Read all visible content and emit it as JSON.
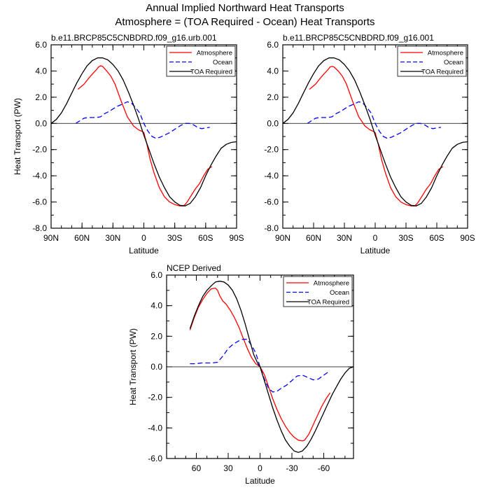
{
  "page": {
    "title_line1": "Annual Implied Northward Heat Transports",
    "title_line2": "Atmosphere = (TOA Required - Ocean) Heat Transports"
  },
  "colors": {
    "atmosphere": "#ff0000",
    "ocean": "#0000ff",
    "toa": "#000000"
  },
  "chart_data": [
    {
      "type": "line",
      "title": "b.e11.BRCP85C5CNBDRD.f09_g16.urb.001",
      "xlabel": "Latitude",
      "ylabel": "Heat Transport (PW)",
      "xlim": [
        90,
        -90
      ],
      "ylim": [
        -8,
        6
      ],
      "x_ticks": [
        90,
        60,
        30,
        0,
        -30,
        -60,
        -90
      ],
      "x_tick_labels": [
        "90N",
        "60N",
        "30N",
        "0",
        "30S",
        "60S",
        "90S"
      ],
      "y_ticks": [
        -8,
        -6,
        -4,
        -2,
        0,
        2,
        4,
        6
      ],
      "y_tick_labels": [
        "-8.0",
        "-6.0",
        "-4.0",
        "-2.0",
        "0.0",
        "2.0",
        "4.0",
        "6.0"
      ],
      "zero_line": true,
      "legend_position": "top-right",
      "series": [
        {
          "name": "Atmosphere",
          "style": "solid",
          "color_key": "atmosphere",
          "x": [
            64,
            58,
            53,
            49,
            46,
            44,
            42,
            40,
            36,
            32,
            28,
            22,
            16,
            10,
            5,
            2,
            0,
            -3,
            -6,
            -10,
            -15,
            -20,
            -25,
            -30,
            -35,
            -38,
            -40,
            -42,
            -46,
            -50,
            -54,
            -58,
            -62,
            -66
          ],
          "y": [
            2.6,
            3.0,
            3.5,
            3.85,
            4.1,
            4.3,
            4.4,
            4.35,
            4.0,
            3.6,
            3.0,
            1.7,
            0.5,
            -0.2,
            -0.5,
            -0.6,
            -0.7,
            -1.6,
            -2.7,
            -3.8,
            -4.9,
            -5.6,
            -6.0,
            -6.2,
            -6.3,
            -6.3,
            -6.2,
            -6.0,
            -5.5,
            -5.0,
            -4.6,
            -4.0,
            -3.5,
            -3.3
          ]
        },
        {
          "name": "Ocean",
          "style": "dashed",
          "color_key": "ocean",
          "x": [
            66,
            62,
            58,
            54,
            50,
            46,
            42,
            38,
            34,
            30,
            26,
            20,
            16,
            12,
            8,
            4,
            0,
            -4,
            -8,
            -12,
            -16,
            -20,
            -24,
            -28,
            -32,
            -36,
            -40,
            -44,
            -48,
            -52,
            -56,
            -60,
            -64
          ],
          "y": [
            0.0,
            0.2,
            0.4,
            0.45,
            0.45,
            0.45,
            0.5,
            0.75,
            0.9,
            1.1,
            1.3,
            1.5,
            1.65,
            1.55,
            1.2,
            0.8,
            0.0,
            -0.6,
            -1.0,
            -1.15,
            -1.05,
            -0.9,
            -0.75,
            -0.55,
            -0.35,
            -0.15,
            0.0,
            0.0,
            -0.1,
            -0.3,
            -0.4,
            -0.35,
            -0.3
          ]
        },
        {
          "name": "TOA Required",
          "style": "solid",
          "color_key": "toa",
          "x": [
            90,
            85,
            80,
            75,
            70,
            65,
            60,
            55,
            50,
            45,
            40,
            35,
            30,
            25,
            20,
            15,
            10,
            5,
            0,
            -5,
            -10,
            -15,
            -20,
            -25,
            -30,
            -35,
            -40,
            -45,
            -50,
            -55,
            -60,
            -65,
            -70,
            -75,
            -80,
            -85,
            -90
          ],
          "y": [
            0.0,
            0.3,
            0.8,
            1.5,
            2.3,
            3.1,
            3.8,
            4.4,
            4.8,
            5.0,
            5.0,
            4.85,
            4.5,
            4.0,
            3.3,
            2.4,
            1.4,
            0.3,
            -0.9,
            -2.0,
            -3.1,
            -4.1,
            -4.9,
            -5.6,
            -6.0,
            -6.25,
            -6.3,
            -6.1,
            -5.6,
            -4.9,
            -4.0,
            -3.2,
            -2.5,
            -1.9,
            -1.6,
            -1.45,
            -1.4
          ]
        }
      ]
    },
    {
      "type": "line",
      "title": "b.e11.BRCP85C5CNBDRD.f09_g16.001",
      "xlabel": "Latitude",
      "ylabel": "",
      "xlim": [
        90,
        -90
      ],
      "ylim": [
        -8,
        6
      ],
      "x_ticks": [
        90,
        60,
        30,
        0,
        -30,
        -60,
        -90
      ],
      "x_tick_labels": [
        "90N",
        "60N",
        "30N",
        "0",
        "30S",
        "60S",
        "90S"
      ],
      "y_ticks": [
        -8,
        -6,
        -4,
        -2,
        0,
        2,
        4,
        6
      ],
      "y_tick_labels": [
        "-8.0",
        "-6.0",
        "-4.0",
        "-2.0",
        "0.0",
        "2.0",
        "4.0",
        "6.0"
      ],
      "zero_line": true,
      "legend_position": "top-right",
      "series": [
        {
          "name": "Atmosphere",
          "style": "solid",
          "color_key": "atmosphere",
          "x": [
            64,
            58,
            53,
            49,
            46,
            44,
            42,
            40,
            36,
            32,
            28,
            22,
            16,
            10,
            5,
            2,
            0,
            -3,
            -6,
            -10,
            -15,
            -20,
            -25,
            -30,
            -35,
            -38,
            -40,
            -42,
            -46,
            -50,
            -54,
            -58,
            -62,
            -66
          ],
          "y": [
            2.6,
            3.0,
            3.5,
            3.85,
            4.1,
            4.3,
            4.35,
            4.3,
            4.0,
            3.6,
            3.0,
            1.7,
            0.5,
            -0.2,
            -0.5,
            -0.6,
            -0.7,
            -1.6,
            -2.7,
            -3.8,
            -4.9,
            -5.6,
            -6.0,
            -6.2,
            -6.3,
            -6.3,
            -6.2,
            -6.0,
            -5.5,
            -5.0,
            -4.6,
            -4.0,
            -3.5,
            -3.3
          ]
        },
        {
          "name": "Ocean",
          "style": "dashed",
          "color_key": "ocean",
          "x": [
            66,
            62,
            58,
            54,
            50,
            46,
            42,
            38,
            34,
            30,
            26,
            20,
            16,
            12,
            8,
            4,
            0,
            -4,
            -8,
            -12,
            -16,
            -20,
            -24,
            -28,
            -32,
            -36,
            -40,
            -44,
            -48,
            -52,
            -56,
            -60,
            -64
          ],
          "y": [
            0.0,
            0.2,
            0.4,
            0.45,
            0.45,
            0.45,
            0.5,
            0.75,
            0.9,
            1.1,
            1.3,
            1.5,
            1.65,
            1.55,
            1.2,
            0.8,
            0.0,
            -0.6,
            -1.0,
            -1.15,
            -1.05,
            -0.9,
            -0.75,
            -0.55,
            -0.35,
            -0.15,
            0.0,
            0.0,
            -0.1,
            -0.3,
            -0.4,
            -0.35,
            -0.3
          ]
        },
        {
          "name": "TOA Required",
          "style": "solid",
          "color_key": "toa",
          "x": [
            90,
            85,
            80,
            75,
            70,
            65,
            60,
            55,
            50,
            45,
            40,
            35,
            30,
            25,
            20,
            15,
            10,
            5,
            0,
            -5,
            -10,
            -15,
            -20,
            -25,
            -30,
            -35,
            -40,
            -45,
            -50,
            -55,
            -60,
            -65,
            -70,
            -75,
            -80,
            -85,
            -90
          ],
          "y": [
            0.0,
            0.3,
            0.8,
            1.5,
            2.3,
            3.1,
            3.8,
            4.4,
            4.8,
            5.0,
            5.0,
            4.85,
            4.5,
            4.0,
            3.3,
            2.4,
            1.4,
            0.3,
            -0.9,
            -2.0,
            -3.1,
            -4.1,
            -4.9,
            -5.6,
            -6.0,
            -6.25,
            -6.3,
            -6.1,
            -5.6,
            -4.9,
            -4.0,
            -3.2,
            -2.5,
            -1.9,
            -1.6,
            -1.45,
            -1.4
          ]
        }
      ]
    },
    {
      "type": "line",
      "title": "NCEP Derived",
      "xlabel": "Latitude",
      "ylabel": "Heat Transport (PW)",
      "xlim": [
        88,
        -88
      ],
      "ylim": [
        -6,
        6
      ],
      "x_ticks": [
        60,
        30,
        0,
        -30,
        -60
      ],
      "x_tick_labels": [
        "60",
        "30",
        "0",
        "-30",
        "-60"
      ],
      "y_ticks": [
        -6,
        -4,
        -2,
        0,
        2,
        4,
        6
      ],
      "y_tick_labels": [
        "-6.0",
        "-4.0",
        "-2.0",
        "0.0",
        "2.0",
        "4.0",
        "6.0"
      ],
      "zero_line": true,
      "legend_position": "top-right",
      "series": [
        {
          "name": "Atmosphere",
          "style": "solid",
          "color_key": "atmosphere",
          "x": [
            66,
            62,
            58,
            54,
            50,
            46,
            42,
            40,
            38,
            35,
            32,
            28,
            24,
            20,
            16,
            12,
            8,
            4,
            0,
            -4,
            -8,
            -12,
            -16,
            -20,
            -24,
            -28,
            -32,
            -36,
            -40,
            -42,
            -46,
            -50,
            -54,
            -58,
            -62,
            -66
          ],
          "y": [
            2.4,
            3.2,
            3.9,
            4.4,
            4.8,
            5.1,
            5.15,
            5.0,
            4.65,
            4.3,
            4.1,
            3.7,
            3.2,
            2.6,
            1.9,
            1.2,
            0.6,
            0.2,
            0.0,
            -0.5,
            -1.3,
            -2.1,
            -2.8,
            -3.4,
            -3.9,
            -4.3,
            -4.6,
            -4.8,
            -4.85,
            -4.8,
            -4.4,
            -3.8,
            -3.2,
            -2.6,
            -2.1,
            -1.7
          ]
        },
        {
          "name": "Ocean",
          "style": "dashed",
          "color_key": "ocean",
          "x": [
            66,
            60,
            55,
            50,
            45,
            40,
            35,
            30,
            25,
            20,
            16,
            12,
            8,
            4,
            0,
            -4,
            -8,
            -12,
            -16,
            -20,
            -25,
            -30,
            -35,
            -40,
            -45,
            -50,
            -55,
            -60,
            -65
          ],
          "y": [
            0.2,
            0.2,
            0.25,
            0.25,
            0.25,
            0.3,
            0.7,
            1.2,
            1.5,
            1.7,
            1.8,
            1.8,
            1.4,
            0.9,
            0.0,
            -0.8,
            -1.4,
            -1.65,
            -1.6,
            -1.4,
            -1.2,
            -0.9,
            -0.6,
            -0.55,
            -0.7,
            -0.85,
            -0.8,
            -0.55,
            -0.3
          ]
        },
        {
          "name": "TOA Required",
          "style": "solid",
          "color_key": "toa",
          "x": [
            66,
            62,
            58,
            54,
            50,
            46,
            42,
            38,
            34,
            30,
            26,
            22,
            18,
            14,
            10,
            6,
            2,
            0,
            -4,
            -8,
            -12,
            -16,
            -20,
            -24,
            -28,
            -32,
            -36,
            -40,
            -44,
            -48,
            -52,
            -56,
            -60,
            -64,
            -68,
            -72,
            -76,
            -80,
            -84,
            -88
          ],
          "y": [
            2.5,
            3.3,
            4.0,
            4.6,
            5.0,
            5.3,
            5.55,
            5.6,
            5.55,
            5.35,
            5.0,
            4.45,
            3.7,
            2.8,
            1.8,
            0.8,
            0.2,
            0.0,
            -0.9,
            -1.8,
            -2.7,
            -3.5,
            -4.2,
            -4.8,
            -5.2,
            -5.5,
            -5.6,
            -5.5,
            -5.2,
            -4.75,
            -4.2,
            -3.6,
            -3.0,
            -2.4,
            -1.8,
            -1.3,
            -0.8,
            -0.4,
            -0.1,
            0.0
          ]
        }
      ]
    }
  ]
}
